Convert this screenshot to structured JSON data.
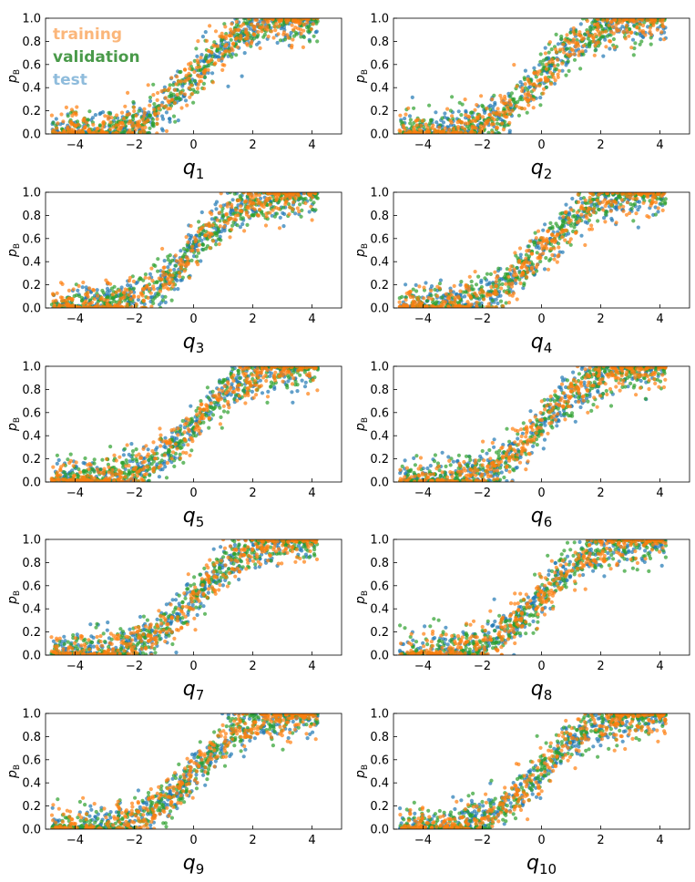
{
  "figure": {
    "legend": [
      {
        "label": "training",
        "color": "#fbb67a"
      },
      {
        "label": "validation",
        "color": "#4a9a4a"
      },
      {
        "label": "test",
        "color": "#8fbcdc"
      }
    ]
  },
  "chart_data": [
    {
      "type": "scatter",
      "xlabel": "q",
      "xlabel_sub": "1",
      "ylabel": "p",
      "ylabel_sub": "B",
      "xlim": [
        -5,
        5
      ],
      "ylim": [
        0,
        1
      ],
      "xticks": [
        -4,
        -2,
        0,
        2,
        4
      ],
      "yticks": [
        0,
        0.2,
        0.4,
        0.6,
        0.8,
        1.0
      ],
      "series": [
        {
          "name": "test",
          "color": "#1f77b4",
          "midpoint": 0.0,
          "width": 1.2
        },
        {
          "name": "validation",
          "color": "#2ca02c",
          "midpoint": 0.0,
          "width": 1.2
        },
        {
          "name": "training",
          "color": "#ff7f0e",
          "midpoint": 0.0,
          "width": 1.2
        }
      ]
    },
    {
      "type": "scatter",
      "xlabel": "q",
      "xlabel_sub": "2",
      "ylabel": "p",
      "ylabel_sub": "B",
      "xlim": [
        -5,
        5
      ],
      "ylim": [
        0,
        1
      ],
      "xticks": [
        -4,
        -2,
        0,
        2,
        4
      ],
      "yticks": [
        0,
        0.2,
        0.4,
        0.6,
        0.8,
        1.0
      ],
      "series": [
        {
          "name": "test",
          "color": "#1f77b4",
          "midpoint": 0.0,
          "width": 1.2
        },
        {
          "name": "validation",
          "color": "#2ca02c",
          "midpoint": 0.0,
          "width": 1.2
        },
        {
          "name": "training",
          "color": "#ff7f0e",
          "midpoint": 0.0,
          "width": 1.2
        }
      ]
    },
    {
      "type": "scatter",
      "xlabel": "q",
      "xlabel_sub": "3",
      "ylabel": "p",
      "ylabel_sub": "B",
      "xlim": [
        -5,
        5
      ],
      "ylim": [
        0,
        1
      ],
      "xticks": [
        -4,
        -2,
        0,
        2,
        4
      ],
      "yticks": [
        0,
        0.2,
        0.4,
        0.6,
        0.8,
        1.0
      ],
      "series": [
        {
          "name": "test",
          "color": "#1f77b4",
          "midpoint": 0.0,
          "width": 1.2
        },
        {
          "name": "validation",
          "color": "#2ca02c",
          "midpoint": 0.0,
          "width": 1.2
        },
        {
          "name": "training",
          "color": "#ff7f0e",
          "midpoint": 0.0,
          "width": 1.2
        }
      ]
    },
    {
      "type": "scatter",
      "xlabel": "q",
      "xlabel_sub": "4",
      "ylabel": "p",
      "ylabel_sub": "B",
      "xlim": [
        -5,
        5
      ],
      "ylim": [
        0,
        1
      ],
      "xticks": [
        -4,
        -2,
        0,
        2,
        4
      ],
      "yticks": [
        0,
        0.2,
        0.4,
        0.6,
        0.8,
        1.0
      ],
      "series": [
        {
          "name": "test",
          "color": "#1f77b4",
          "midpoint": 0.0,
          "width": 1.2
        },
        {
          "name": "validation",
          "color": "#2ca02c",
          "midpoint": 0.0,
          "width": 1.2
        },
        {
          "name": "training",
          "color": "#ff7f0e",
          "midpoint": 0.0,
          "width": 1.2
        }
      ]
    },
    {
      "type": "scatter",
      "xlabel": "q",
      "xlabel_sub": "5",
      "ylabel": "p",
      "ylabel_sub": "B",
      "xlim": [
        -5,
        5
      ],
      "ylim": [
        0,
        1
      ],
      "xticks": [
        -4,
        -2,
        0,
        2,
        4
      ],
      "yticks": [
        0,
        0.2,
        0.4,
        0.6,
        0.8,
        1.0
      ],
      "series": [
        {
          "name": "test",
          "color": "#1f77b4",
          "midpoint": 0.0,
          "width": 1.2
        },
        {
          "name": "validation",
          "color": "#2ca02c",
          "midpoint": 0.0,
          "width": 1.2
        },
        {
          "name": "training",
          "color": "#ff7f0e",
          "midpoint": 0.0,
          "width": 1.2
        }
      ]
    },
    {
      "type": "scatter",
      "xlabel": "q",
      "xlabel_sub": "6",
      "ylabel": "p",
      "ylabel_sub": "B",
      "xlim": [
        -5,
        5
      ],
      "ylim": [
        0,
        1
      ],
      "xticks": [
        -4,
        -2,
        0,
        2,
        4
      ],
      "yticks": [
        0,
        0.2,
        0.4,
        0.6,
        0.8,
        1.0
      ],
      "series": [
        {
          "name": "test",
          "color": "#1f77b4",
          "midpoint": 0.0,
          "width": 1.2
        },
        {
          "name": "validation",
          "color": "#2ca02c",
          "midpoint": 0.0,
          "width": 1.2
        },
        {
          "name": "training",
          "color": "#ff7f0e",
          "midpoint": 0.0,
          "width": 1.2
        }
      ]
    },
    {
      "type": "scatter",
      "xlabel": "q",
      "xlabel_sub": "7",
      "ylabel": "p",
      "ylabel_sub": "B",
      "xlim": [
        -5,
        5
      ],
      "ylim": [
        0,
        1
      ],
      "xticks": [
        -4,
        -2,
        0,
        2,
        4
      ],
      "yticks": [
        0,
        0.2,
        0.4,
        0.6,
        0.8,
        1.0
      ],
      "series": [
        {
          "name": "test",
          "color": "#1f77b4",
          "midpoint": 0.0,
          "width": 1.2
        },
        {
          "name": "validation",
          "color": "#2ca02c",
          "midpoint": 0.0,
          "width": 1.2
        },
        {
          "name": "training",
          "color": "#ff7f0e",
          "midpoint": 0.0,
          "width": 1.2
        }
      ]
    },
    {
      "type": "scatter",
      "xlabel": "q",
      "xlabel_sub": "8",
      "ylabel": "p",
      "ylabel_sub": "B",
      "xlim": [
        -5,
        5
      ],
      "ylim": [
        0,
        1
      ],
      "xticks": [
        -4,
        -2,
        0,
        2,
        4
      ],
      "yticks": [
        0,
        0.2,
        0.4,
        0.6,
        0.8,
        1.0
      ],
      "series": [
        {
          "name": "test",
          "color": "#1f77b4",
          "midpoint": 0.0,
          "width": 1.2
        },
        {
          "name": "validation",
          "color": "#2ca02c",
          "midpoint": 0.0,
          "width": 1.2
        },
        {
          "name": "training",
          "color": "#ff7f0e",
          "midpoint": 0.0,
          "width": 1.2
        }
      ]
    },
    {
      "type": "scatter",
      "xlabel": "q",
      "xlabel_sub": "9",
      "ylabel": "p",
      "ylabel_sub": "B",
      "xlim": [
        -5,
        5
      ],
      "ylim": [
        0,
        1
      ],
      "xticks": [
        -4,
        -2,
        0,
        2,
        4
      ],
      "yticks": [
        0,
        0.2,
        0.4,
        0.6,
        0.8,
        1.0
      ],
      "series": [
        {
          "name": "test",
          "color": "#1f77b4",
          "midpoint": 0.0,
          "width": 1.2
        },
        {
          "name": "validation",
          "color": "#2ca02c",
          "midpoint": 0.0,
          "width": 1.2
        },
        {
          "name": "training",
          "color": "#ff7f0e",
          "midpoint": 0.0,
          "width": 1.2
        }
      ]
    },
    {
      "type": "scatter",
      "xlabel": "q",
      "xlabel_sub": "10",
      "ylabel": "p",
      "ylabel_sub": "B",
      "xlim": [
        -5,
        5
      ],
      "ylim": [
        0,
        1
      ],
      "xticks": [
        -4,
        -2,
        0,
        2,
        4
      ],
      "yticks": [
        0,
        0.2,
        0.4,
        0.6,
        0.8,
        1.0
      ],
      "series": [
        {
          "name": "test",
          "color": "#1f77b4",
          "midpoint": 0.0,
          "width": 1.2
        },
        {
          "name": "validation",
          "color": "#2ca02c",
          "midpoint": 0.0,
          "width": 1.2
        },
        {
          "name": "training",
          "color": "#ff7f0e",
          "midpoint": 0.0,
          "width": 1.2
        }
      ]
    }
  ]
}
